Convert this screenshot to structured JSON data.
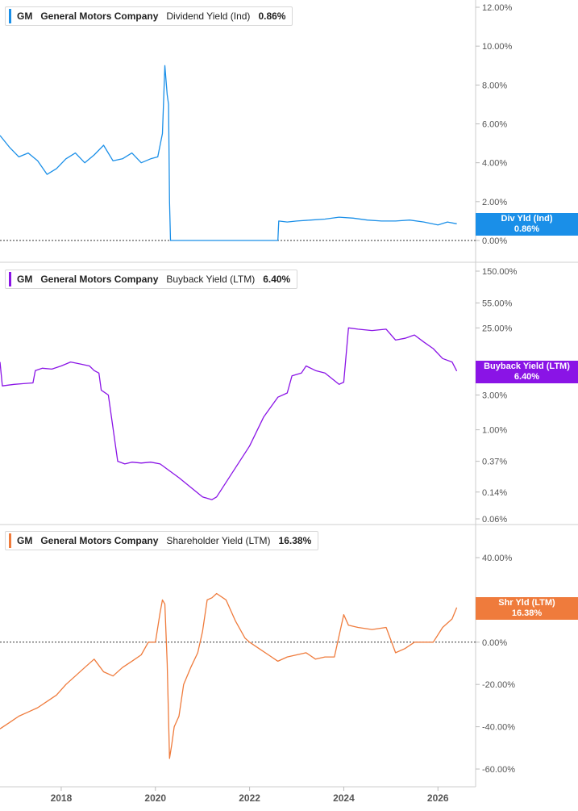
{
  "chart_data": [
    {
      "type": "line",
      "legend": {
        "ticker": "GM",
        "company": "General Motors Company",
        "metric": "Dividend Yield (Ind)",
        "value": "0.86%"
      },
      "badge": {
        "label": "Div Yld (Ind)",
        "value": "0.86%"
      },
      "color": "#1a8fe8",
      "yscale": "linear",
      "ylim": [
        0,
        12
      ],
      "yticks": [
        {
          "v": 12,
          "label": "12.00%"
        },
        {
          "v": 10,
          "label": "10.00%"
        },
        {
          "v": 8,
          "label": "8.00%"
        },
        {
          "v": 6,
          "label": "6.00%"
        },
        {
          "v": 4,
          "label": "4.00%"
        },
        {
          "v": 2,
          "label": "2.00%"
        },
        {
          "v": 0,
          "label": "0.00%"
        }
      ],
      "zero_line": true,
      "series": [
        {
          "x": [
            2016.7,
            2016.9,
            2017.1,
            2017.3,
            2017.5,
            2017.7,
            2017.9,
            2018.1,
            2018.3,
            2018.5,
            2018.7,
            2018.9,
            2019.1,
            2019.3,
            2019.5,
            2019.7,
            2019.9,
            2020.05,
            2020.15,
            2020.2,
            2020.25,
            2020.28,
            2020.3,
            2020.32,
            2020.33,
            2022.6,
            2022.62,
            2022.8,
            2023.0,
            2023.3,
            2023.6,
            2023.9,
            2024.2,
            2024.5,
            2024.8,
            2025.1,
            2025.4,
            2025.7,
            2026.0,
            2026.2,
            2026.4
          ],
          "y": [
            5.4,
            4.8,
            4.3,
            4.5,
            4.1,
            3.4,
            3.7,
            4.2,
            4.5,
            4.0,
            4.4,
            4.9,
            4.1,
            4.2,
            4.5,
            4.0,
            4.2,
            4.3,
            5.5,
            9.0,
            7.5,
            7.0,
            2.0,
            0.0,
            0.0,
            0.0,
            1.0,
            0.95,
            1.0,
            1.05,
            1.1,
            1.2,
            1.15,
            1.05,
            1.0,
            1.0,
            1.05,
            0.95,
            0.8,
            0.95,
            0.86
          ]
        }
      ]
    },
    {
      "type": "line",
      "legend": {
        "ticker": "GM",
        "company": "General Motors Company",
        "metric": "Buyback Yield (LTM)",
        "value": "6.40%"
      },
      "badge": {
        "label": "Buyback Yield (LTM)",
        "value": "6.40%"
      },
      "color": "#8a14e6",
      "yscale": "log",
      "ylim": [
        0.06,
        150
      ],
      "yticks": [
        {
          "v": 150,
          "label": "150.00%"
        },
        {
          "v": 55,
          "label": "55.00%"
        },
        {
          "v": 25,
          "label": "25.00%"
        },
        {
          "v": 3,
          "label": "3.00%"
        },
        {
          "v": 1,
          "label": "1.00%"
        },
        {
          "v": 0.37,
          "label": "0.37%"
        },
        {
          "v": 0.14,
          "label": "0.14%"
        },
        {
          "v": 0.06,
          "label": "0.06%"
        }
      ],
      "zero_line": false,
      "series": [
        {
          "x": [
            2016.7,
            2016.75,
            2017.0,
            2017.2,
            2017.4,
            2017.45,
            2017.6,
            2017.8,
            2018.0,
            2018.2,
            2018.4,
            2018.6,
            2018.7,
            2018.8,
            2018.85,
            2019.0,
            2019.2,
            2019.35,
            2019.5,
            2019.7,
            2019.9,
            2020.1,
            2020.5,
            2021.0,
            2021.2,
            2021.3,
            2022.0,
            2022.3,
            2022.6,
            2022.8,
            2022.9,
            2023.1,
            2023.2,
            2023.4,
            2023.6,
            2023.9,
            2024.0,
            2024.1,
            2024.3,
            2024.6,
            2024.9,
            2025.1,
            2025.3,
            2025.5,
            2025.7,
            2025.9,
            2026.1,
            2026.3,
            2026.4
          ],
          "y": [
            8.5,
            4.0,
            4.2,
            4.3,
            4.4,
            6.5,
            7.0,
            6.8,
            7.5,
            8.5,
            8.0,
            7.5,
            6.5,
            6.0,
            3.5,
            3.0,
            0.37,
            0.34,
            0.36,
            0.35,
            0.36,
            0.34,
            0.22,
            0.12,
            0.11,
            0.12,
            0.6,
            1.5,
            2.8,
            3.2,
            5.5,
            6.0,
            7.5,
            6.5,
            6.0,
            4.2,
            4.5,
            25,
            24,
            23,
            24,
            17,
            18,
            20,
            16,
            13,
            9.5,
            8.5,
            6.4
          ]
        }
      ]
    },
    {
      "type": "line",
      "legend": {
        "ticker": "GM",
        "company": "General Motors Company",
        "metric": "Shareholder Yield (LTM)",
        "value": "16.38%"
      },
      "badge": {
        "label": "Shr Yld (LTM)",
        "value": "16.38%"
      },
      "color": "#ef7b3c",
      "yscale": "linear",
      "ylim": [
        -60,
        40
      ],
      "yticks": [
        {
          "v": 40,
          "label": "40.00%"
        },
        {
          "v": 20,
          "label": "20.00%"
        },
        {
          "v": 0,
          "label": "0.00%"
        },
        {
          "v": -20,
          "label": "-20.00%"
        },
        {
          "v": -40,
          "label": "-40.00%"
        },
        {
          "v": -60,
          "label": "-60.00%"
        }
      ],
      "zero_line": true,
      "series": [
        {
          "x": [
            2016.7,
            2016.9,
            2017.1,
            2017.3,
            2017.5,
            2017.7,
            2017.9,
            2018.1,
            2018.3,
            2018.5,
            2018.7,
            2018.9,
            2019.1,
            2019.3,
            2019.5,
            2019.7,
            2019.85,
            2020.0,
            2020.1,
            2020.15,
            2020.2,
            2020.25,
            2020.3,
            2020.35,
            2020.4,
            2020.5,
            2020.6,
            2020.75,
            2020.9,
            2021.0,
            2021.1,
            2021.2,
            2021.3,
            2021.5,
            2021.7,
            2021.9,
            2022.0,
            2022.2,
            2022.4,
            2022.6,
            2022.8,
            2023.0,
            2023.2,
            2023.4,
            2023.6,
            2023.8,
            2024.0,
            2024.1,
            2024.3,
            2024.6,
            2024.9,
            2025.1,
            2025.3,
            2025.5,
            2025.7,
            2025.9,
            2026.1,
            2026.3,
            2026.4
          ],
          "y": [
            -41,
            -38,
            -35,
            -33,
            -31,
            -28,
            -25,
            -20,
            -16,
            -12,
            -8,
            -14,
            -16,
            -12,
            -9,
            -6,
            0,
            0,
            14,
            20,
            18,
            -10,
            -55,
            -48,
            -40,
            -35,
            -20,
            -12,
            -5,
            5,
            20,
            21,
            23,
            20,
            10,
            2,
            0,
            -3,
            -6,
            -9,
            -7,
            -6,
            -5,
            -8,
            -7,
            -7,
            13,
            8,
            7,
            6,
            7,
            -5,
            -3,
            0,
            0,
            0,
            7,
            11,
            16.38
          ]
        }
      ]
    }
  ],
  "x_axis": {
    "xlim": [
      2016.7,
      2026.8
    ],
    "ticks": [
      {
        "v": 2018,
        "label": "2018"
      },
      {
        "v": 2020,
        "label": "2020"
      },
      {
        "v": 2022,
        "label": "2022"
      },
      {
        "v": 2024,
        "label": "2024"
      },
      {
        "v": 2026,
        "label": "2026"
      }
    ]
  },
  "colors": {
    "grid": "#dddddd",
    "axis_text": "#555555"
  }
}
